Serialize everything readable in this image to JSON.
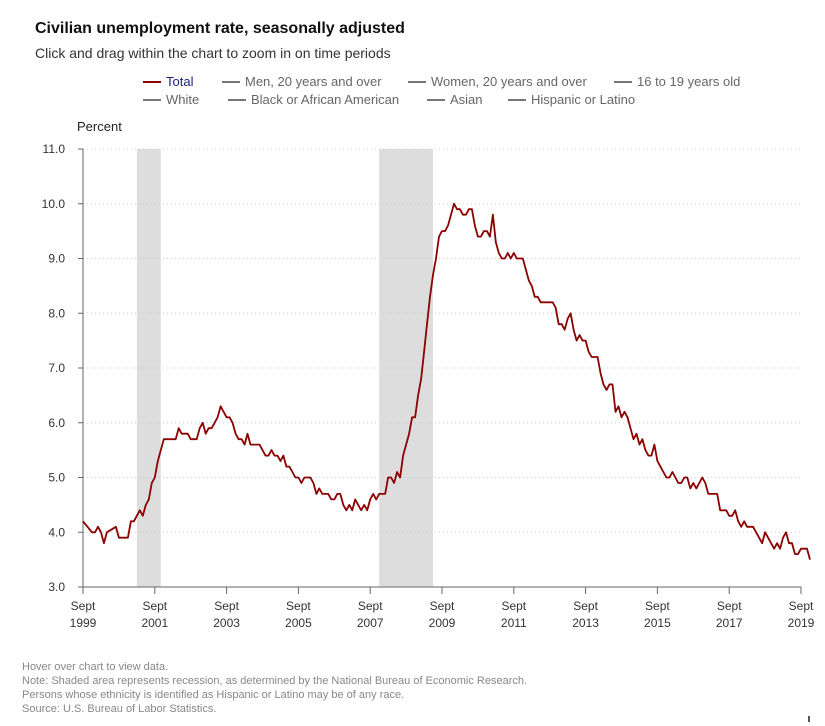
{
  "title": "Civilian unemployment rate, seasonally adjusted",
  "subtitle": "Click and drag within the chart to zoom in on time periods",
  "legend": [
    {
      "label": "Total",
      "active": true
    },
    {
      "label": "Men, 20 years and over",
      "active": false
    },
    {
      "label": "Women, 20 years and over",
      "active": false
    },
    {
      "label": "16 to 19 years old",
      "active": false
    },
    {
      "label": "White",
      "active": false
    },
    {
      "label": "Black or African American",
      "active": false
    },
    {
      "label": "Asian",
      "active": false
    },
    {
      "label": "Hispanic or Latino",
      "active": false
    }
  ],
  "notes": [
    "Hover over chart to view data.",
    "Note: Shaded area represents recession, as determined by the National Bureau of Economic Research.",
    "Persons whose ethnicity is identified as Hispanic or Latino may be of any race.",
    "Source: U.S. Bureau of Labor Statistics."
  ],
  "colors": {
    "series": "#8b0000",
    "recession": "#dddddd",
    "grid": "#cccccc",
    "axis": "#666666"
  },
  "chart_data": {
    "type": "line",
    "ylabel": "Percent",
    "ylim": [
      3.0,
      11.0
    ],
    "yticks": [
      "3.0",
      "4.0",
      "5.0",
      "6.0",
      "7.0",
      "8.0",
      "9.0",
      "10.0",
      "11.0"
    ],
    "x_start": "1999-09",
    "x_end": "2019-09",
    "xticks": [
      {
        "month": "Sept",
        "year": "1999",
        "date": "1999-09"
      },
      {
        "month": "Sept",
        "year": "2001",
        "date": "2001-09"
      },
      {
        "month": "Sept",
        "year": "2003",
        "date": "2003-09"
      },
      {
        "month": "Sept",
        "year": "2005",
        "date": "2005-09"
      },
      {
        "month": "Sept",
        "year": "2007",
        "date": "2007-09"
      },
      {
        "month": "Sept",
        "year": "2009",
        "date": "2009-09"
      },
      {
        "month": "Sept",
        "year": "2011",
        "date": "2011-09"
      },
      {
        "month": "Sept",
        "year": "2013",
        "date": "2013-09"
      },
      {
        "month": "Sept",
        "year": "2015",
        "date": "2015-09"
      },
      {
        "month": "Sept",
        "year": "2017",
        "date": "2017-09"
      },
      {
        "month": "Sept",
        "year": "2019",
        "date": "2019-09"
      }
    ],
    "recessions": [
      {
        "start": "2001-03",
        "end": "2001-11"
      },
      {
        "start": "2007-12",
        "end": "2009-06"
      }
    ],
    "grid": true,
    "series": [
      {
        "name": "Total",
        "points": [
          [
            "1999-09",
            4.2
          ],
          [
            "1999-12",
            4.0
          ],
          [
            "2000-01",
            4.0
          ],
          [
            "2000-02",
            4.1
          ],
          [
            "2000-03",
            4.0
          ],
          [
            "2000-04",
            3.8
          ],
          [
            "2000-05",
            4.0
          ],
          [
            "2000-08",
            4.1
          ],
          [
            "2000-09",
            3.9
          ],
          [
            "2000-12",
            3.9
          ],
          [
            "2001-01",
            4.2
          ],
          [
            "2001-02",
            4.2
          ],
          [
            "2001-03",
            4.3
          ],
          [
            "2001-04",
            4.4
          ],
          [
            "2001-05",
            4.3
          ],
          [
            "2001-06",
            4.5
          ],
          [
            "2001-07",
            4.6
          ],
          [
            "2001-08",
            4.9
          ],
          [
            "2001-09",
            5.0
          ],
          [
            "2001-10",
            5.3
          ],
          [
            "2001-11",
            5.5
          ],
          [
            "2001-12",
            5.7
          ],
          [
            "2002-04",
            5.7
          ],
          [
            "2002-05",
            5.9
          ],
          [
            "2002-06",
            5.8
          ],
          [
            "2002-08",
            5.8
          ],
          [
            "2002-09",
            5.7
          ],
          [
            "2002-11",
            5.7
          ],
          [
            "2002-12",
            5.9
          ],
          [
            "2003-01",
            6.0
          ],
          [
            "2003-02",
            5.8
          ],
          [
            "2003-03",
            5.9
          ],
          [
            "2003-04",
            5.9
          ],
          [
            "2003-05",
            6.0
          ],
          [
            "2003-06",
            6.1
          ],
          [
            "2003-07",
            6.3
          ],
          [
            "2003-08",
            6.2
          ],
          [
            "2003-09",
            6.1
          ],
          [
            "2003-10",
            6.1
          ],
          [
            "2003-11",
            6.0
          ],
          [
            "2003-12",
            5.8
          ],
          [
            "2004-01",
            5.7
          ],
          [
            "2004-02",
            5.7
          ],
          [
            "2004-03",
            5.6
          ],
          [
            "2004-04",
            5.8
          ],
          [
            "2004-05",
            5.6
          ],
          [
            "2004-08",
            5.6
          ],
          [
            "2004-09",
            5.5
          ],
          [
            "2004-10",
            5.4
          ],
          [
            "2004-11",
            5.4
          ],
          [
            "2004-12",
            5.5
          ],
          [
            "2005-01",
            5.4
          ],
          [
            "2005-02",
            5.4
          ],
          [
            "2005-03",
            5.3
          ],
          [
            "2005-04",
            5.4
          ],
          [
            "2005-05",
            5.2
          ],
          [
            "2005-06",
            5.2
          ],
          [
            "2005-07",
            5.1
          ],
          [
            "2005-08",
            5.0
          ],
          [
            "2005-09",
            5.0
          ],
          [
            "2005-10",
            4.9
          ],
          [
            "2005-11",
            5.0
          ],
          [
            "2006-01",
            5.0
          ],
          [
            "2006-02",
            4.9
          ],
          [
            "2006-03",
            4.7
          ],
          [
            "2006-04",
            4.8
          ],
          [
            "2006-05",
            4.7
          ],
          [
            "2006-07",
            4.7
          ],
          [
            "2006-08",
            4.6
          ],
          [
            "2006-09",
            4.6
          ],
          [
            "2006-10",
            4.7
          ],
          [
            "2006-11",
            4.7
          ],
          [
            "2006-12",
            4.5
          ],
          [
            "2007-01",
            4.4
          ],
          [
            "2007-02",
            4.5
          ],
          [
            "2007-03",
            4.4
          ],
          [
            "2007-04",
            4.6
          ],
          [
            "2007-05",
            4.5
          ],
          [
            "2007-06",
            4.4
          ],
          [
            "2007-07",
            4.5
          ],
          [
            "2007-08",
            4.4
          ],
          [
            "2007-09",
            4.6
          ],
          [
            "2007-10",
            4.7
          ],
          [
            "2007-11",
            4.6
          ],
          [
            "2007-12",
            4.7
          ],
          [
            "2008-02",
            4.7
          ],
          [
            "2008-03",
            5.0
          ],
          [
            "2008-04",
            5.0
          ],
          [
            "2008-05",
            4.9
          ],
          [
            "2008-06",
            5.1
          ],
          [
            "2008-07",
            5.0
          ],
          [
            "2008-08",
            5.4
          ],
          [
            "2008-09",
            5.6
          ],
          [
            "2008-10",
            5.8
          ],
          [
            "2008-11",
            6.1
          ],
          [
            "2008-12",
            6.1
          ],
          [
            "2009-01",
            6.5
          ],
          [
            "2009-02",
            6.8
          ],
          [
            "2009-03",
            7.3
          ],
          [
            "2009-04",
            7.8
          ],
          [
            "2009-05",
            8.3
          ],
          [
            "2009-06",
            8.7
          ],
          [
            "2009-07",
            9.0
          ],
          [
            "2009-08",
            9.4
          ],
          [
            "2009-09",
            9.5
          ],
          [
            "2009-10",
            9.5
          ],
          [
            "2009-11",
            9.6
          ],
          [
            "2009-12",
            9.8
          ],
          [
            "2010-01",
            10.0
          ],
          [
            "2010-02",
            9.9
          ],
          [
            "2010-03",
            9.9
          ],
          [
            "2010-04",
            9.8
          ],
          [
            "2010-05",
            9.8
          ],
          [
            "2010-06",
            9.9
          ],
          [
            "2010-07",
            9.9
          ],
          [
            "2010-08",
            9.6
          ],
          [
            "2010-09",
            9.4
          ],
          [
            "2010-10",
            9.4
          ],
          [
            "2010-11",
            9.5
          ],
          [
            "2010-12",
            9.5
          ],
          [
            "2011-01",
            9.4
          ],
          [
            "2011-02",
            9.8
          ],
          [
            "2011-03",
            9.3
          ],
          [
            "2011-04",
            9.1
          ],
          [
            "2011-05",
            9.0
          ],
          [
            "2011-06",
            9.0
          ],
          [
            "2011-07",
            9.1
          ],
          [
            "2011-08",
            9.0
          ],
          [
            "2011-09",
            9.1
          ],
          [
            "2011-10",
            9.0
          ],
          [
            "2011-12",
            9.0
          ],
          [
            "2012-01",
            8.8
          ],
          [
            "2012-02",
            8.6
          ],
          [
            "2012-03",
            8.5
          ],
          [
            "2012-04",
            8.3
          ],
          [
            "2012-05",
            8.3
          ],
          [
            "2012-06",
            8.2
          ],
          [
            "2012-10",
            8.2
          ],
          [
            "2012-11",
            8.1
          ],
          [
            "2012-12",
            7.8
          ],
          [
            "2013-01",
            7.8
          ],
          [
            "2013-02",
            7.7
          ],
          [
            "2013-03",
            7.9
          ],
          [
            "2013-04",
            8.0
          ],
          [
            "2013-05",
            7.7
          ],
          [
            "2013-06",
            7.5
          ],
          [
            "2013-07",
            7.6
          ],
          [
            "2013-08",
            7.5
          ],
          [
            "2013-09",
            7.5
          ],
          [
            "2013-10",
            7.3
          ],
          [
            "2013-11",
            7.2
          ],
          [
            "2013-12",
            7.2
          ],
          [
            "2014-01",
            7.2
          ],
          [
            "2014-02",
            6.9
          ],
          [
            "2014-03",
            6.7
          ],
          [
            "2014-04",
            6.6
          ],
          [
            "2014-05",
            6.7
          ],
          [
            "2014-06",
            6.7
          ],
          [
            "2014-07",
            6.2
          ],
          [
            "2014-08",
            6.3
          ],
          [
            "2014-09",
            6.1
          ],
          [
            "2014-10",
            6.2
          ],
          [
            "2014-11",
            6.1
          ],
          [
            "2014-12",
            5.9
          ],
          [
            "2015-01",
            5.7
          ],
          [
            "2015-02",
            5.8
          ],
          [
            "2015-03",
            5.6
          ],
          [
            "2015-04",
            5.7
          ],
          [
            "2015-05",
            5.5
          ],
          [
            "2015-06",
            5.4
          ],
          [
            "2015-07",
            5.4
          ],
          [
            "2015-08",
            5.6
          ],
          [
            "2015-09",
            5.3
          ],
          [
            "2015-10",
            5.2
          ],
          [
            "2015-11",
            5.1
          ],
          [
            "2015-12",
            5.0
          ],
          [
            "2016-01",
            5.0
          ],
          [
            "2016-02",
            5.1
          ],
          [
            "2016-03",
            5.0
          ],
          [
            "2016-04",
            4.9
          ],
          [
            "2016-05",
            4.9
          ],
          [
            "2016-06",
            5.0
          ],
          [
            "2016-07",
            5.0
          ],
          [
            "2016-08",
            4.8
          ],
          [
            "2016-09",
            4.9
          ],
          [
            "2016-10",
            4.8
          ],
          [
            "2016-11",
            4.9
          ],
          [
            "2016-12",
            5.0
          ],
          [
            "2017-01",
            4.9
          ],
          [
            "2017-02",
            4.7
          ],
          [
            "2017-05",
            4.7
          ],
          [
            "2017-06",
            4.4
          ],
          [
            "2017-08",
            4.4
          ],
          [
            "2017-09",
            4.3
          ],
          [
            "2017-10",
            4.3
          ],
          [
            "2017-11",
            4.4
          ],
          [
            "2017-12",
            4.2
          ],
          [
            "2018-01",
            4.1
          ],
          [
            "2018-02",
            4.2
          ],
          [
            "2018-03",
            4.1
          ],
          [
            "2018-05",
            4.1
          ],
          [
            "2018-06",
            4.0
          ],
          [
            "2018-07",
            3.9
          ],
          [
            "2018-08",
            3.8
          ],
          [
            "2018-09",
            4.0
          ],
          [
            "2018-10",
            3.9
          ],
          [
            "2018-11",
            3.8
          ],
          [
            "2018-12",
            3.7
          ],
          [
            "2019-01",
            3.8
          ],
          [
            "2019-02",
            3.7
          ],
          [
            "2019-03",
            3.9
          ],
          [
            "2019-04",
            4.0
          ],
          [
            "2019-05",
            3.8
          ],
          [
            "2019-06",
            3.8
          ],
          [
            "2019-07",
            3.6
          ],
          [
            "2019-08",
            3.6
          ],
          [
            "2019-09",
            3.7
          ],
          [
            "2019-10",
            3.7
          ],
          [
            "2019-11",
            3.7
          ],
          [
            "2019-12",
            3.5
          ]
        ]
      }
    ]
  }
}
